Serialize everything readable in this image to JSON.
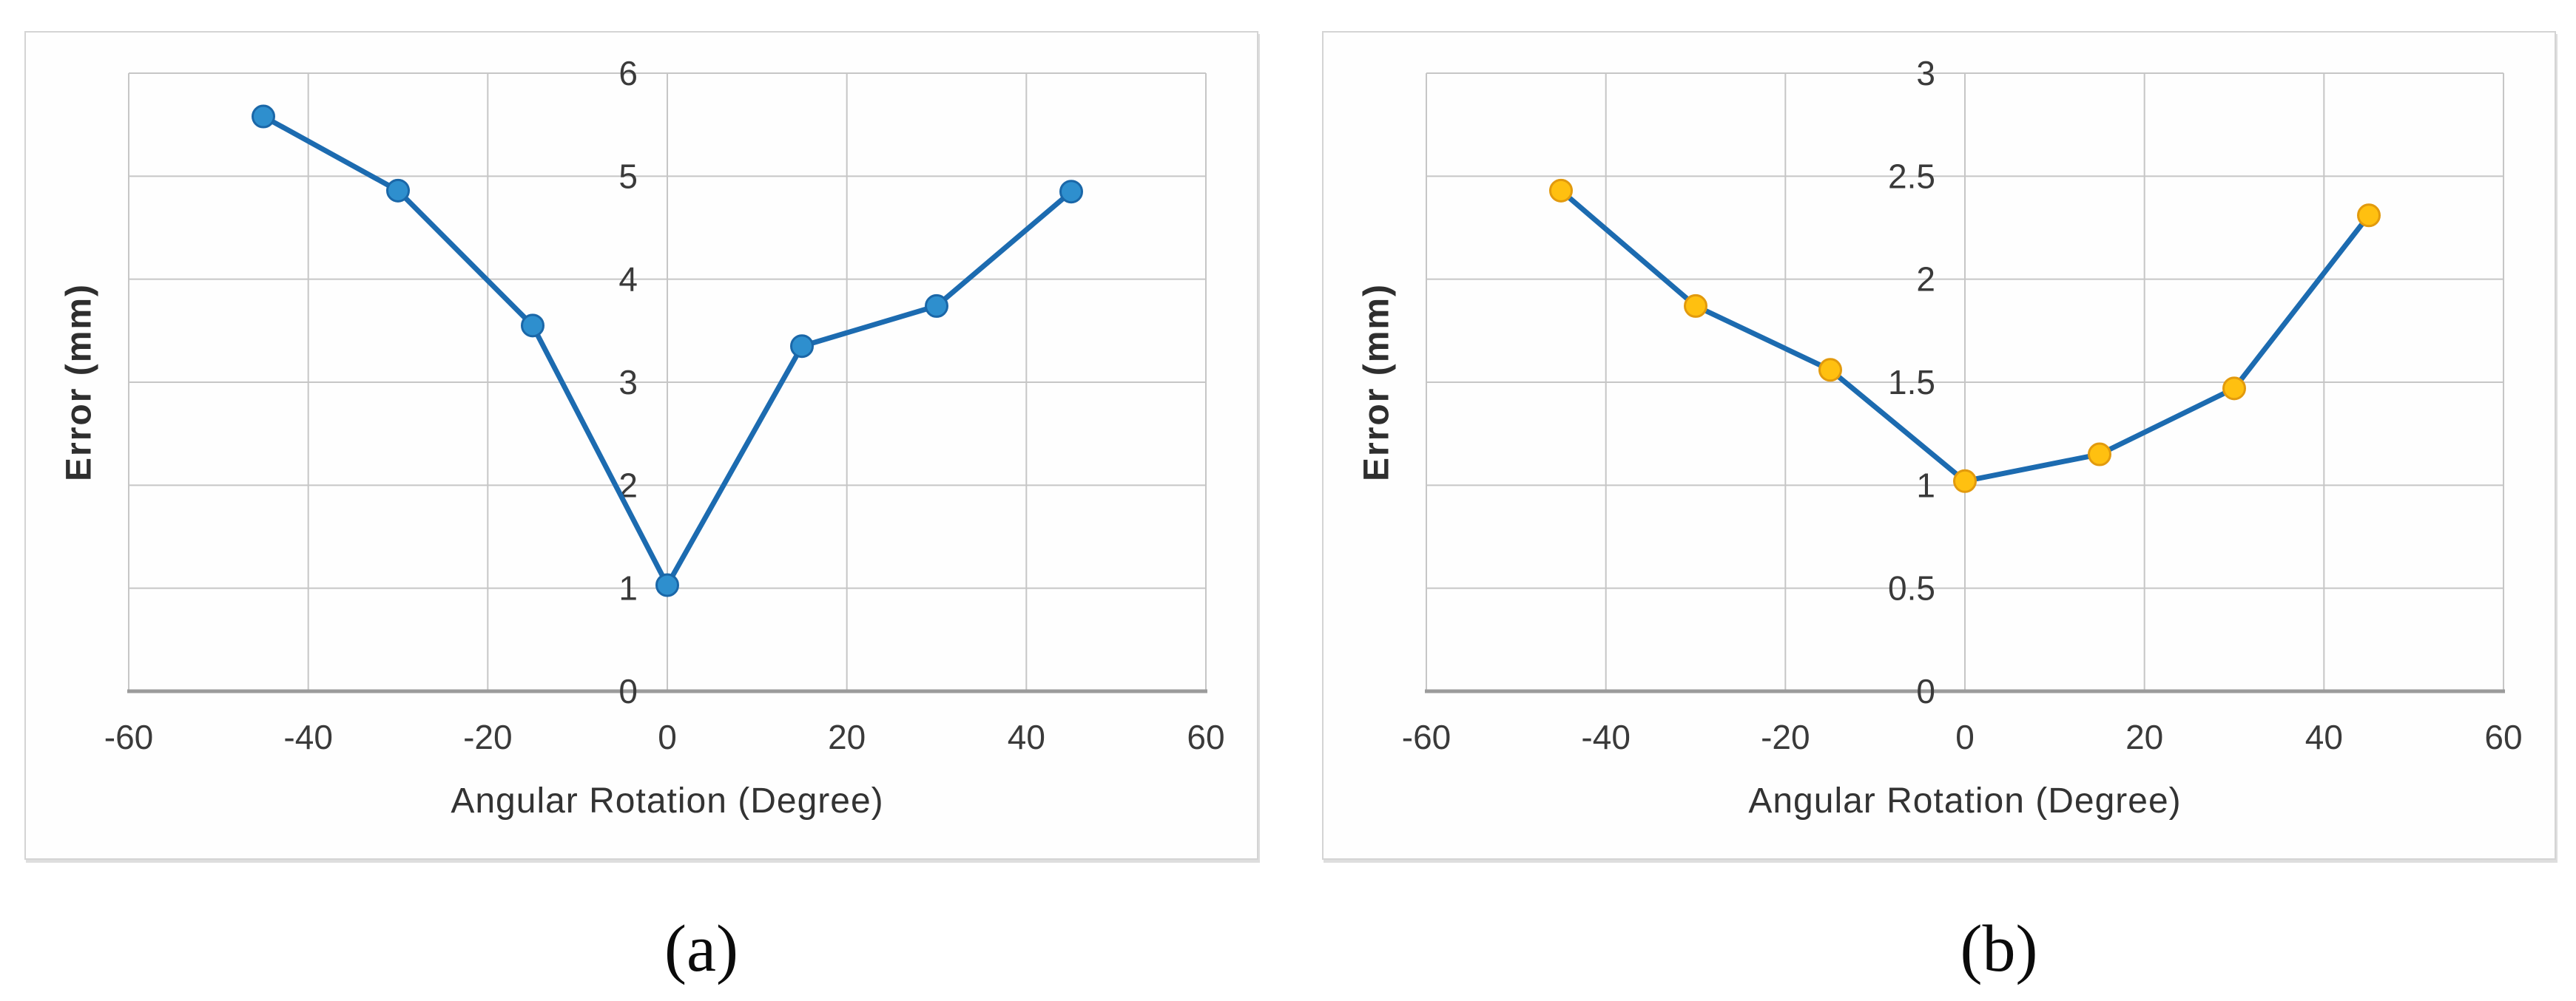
{
  "style": {
    "grid_color": "#c6c6c6",
    "axis_color": "#9b9b9b",
    "tick_text_color": "#3a3a3a",
    "panel_border_color": "#d4d4d4"
  },
  "chart_data": [
    {
      "id": "a",
      "type": "line",
      "caption": "(a)",
      "xlabel": "Angular Rotation (Degree)",
      "ylabel": "Error (mm)",
      "xlim": [
        -60,
        60
      ],
      "ylim": [
        0,
        6
      ],
      "x_ticks": [
        -60,
        -40,
        -20,
        0,
        20,
        40,
        60
      ],
      "y_ticks": [
        0,
        1,
        2,
        3,
        4,
        5,
        6
      ],
      "grid": "on",
      "legend": "none",
      "x": [
        -45,
        -30,
        -15,
        0,
        15,
        30,
        45
      ],
      "y": [
        5.58,
        4.86,
        3.55,
        1.03,
        3.35,
        3.74,
        4.85
      ],
      "line_color": "#1c6bb0",
      "marker_fill": "#2e8fce",
      "marker_stroke": "#1a67a8"
    },
    {
      "id": "b",
      "type": "line",
      "caption": "(b)",
      "xlabel": "Angular Rotation (Degree)",
      "ylabel": "Error (mm)",
      "xlim": [
        -60,
        60
      ],
      "ylim": [
        0,
        3
      ],
      "x_ticks": [
        -60,
        -40,
        -20,
        0,
        20,
        40,
        60
      ],
      "y_ticks": [
        0,
        0.5,
        1,
        1.5,
        2,
        2.5,
        3
      ],
      "grid": "on",
      "legend": "none",
      "x": [
        -45,
        -30,
        -15,
        0,
        15,
        30,
        45
      ],
      "y": [
        2.43,
        1.87,
        1.56,
        1.02,
        1.15,
        1.47,
        2.31
      ],
      "line_color": "#1c6bb0",
      "marker_fill": "#ffc010",
      "marker_stroke": "#e29a0d"
    }
  ]
}
